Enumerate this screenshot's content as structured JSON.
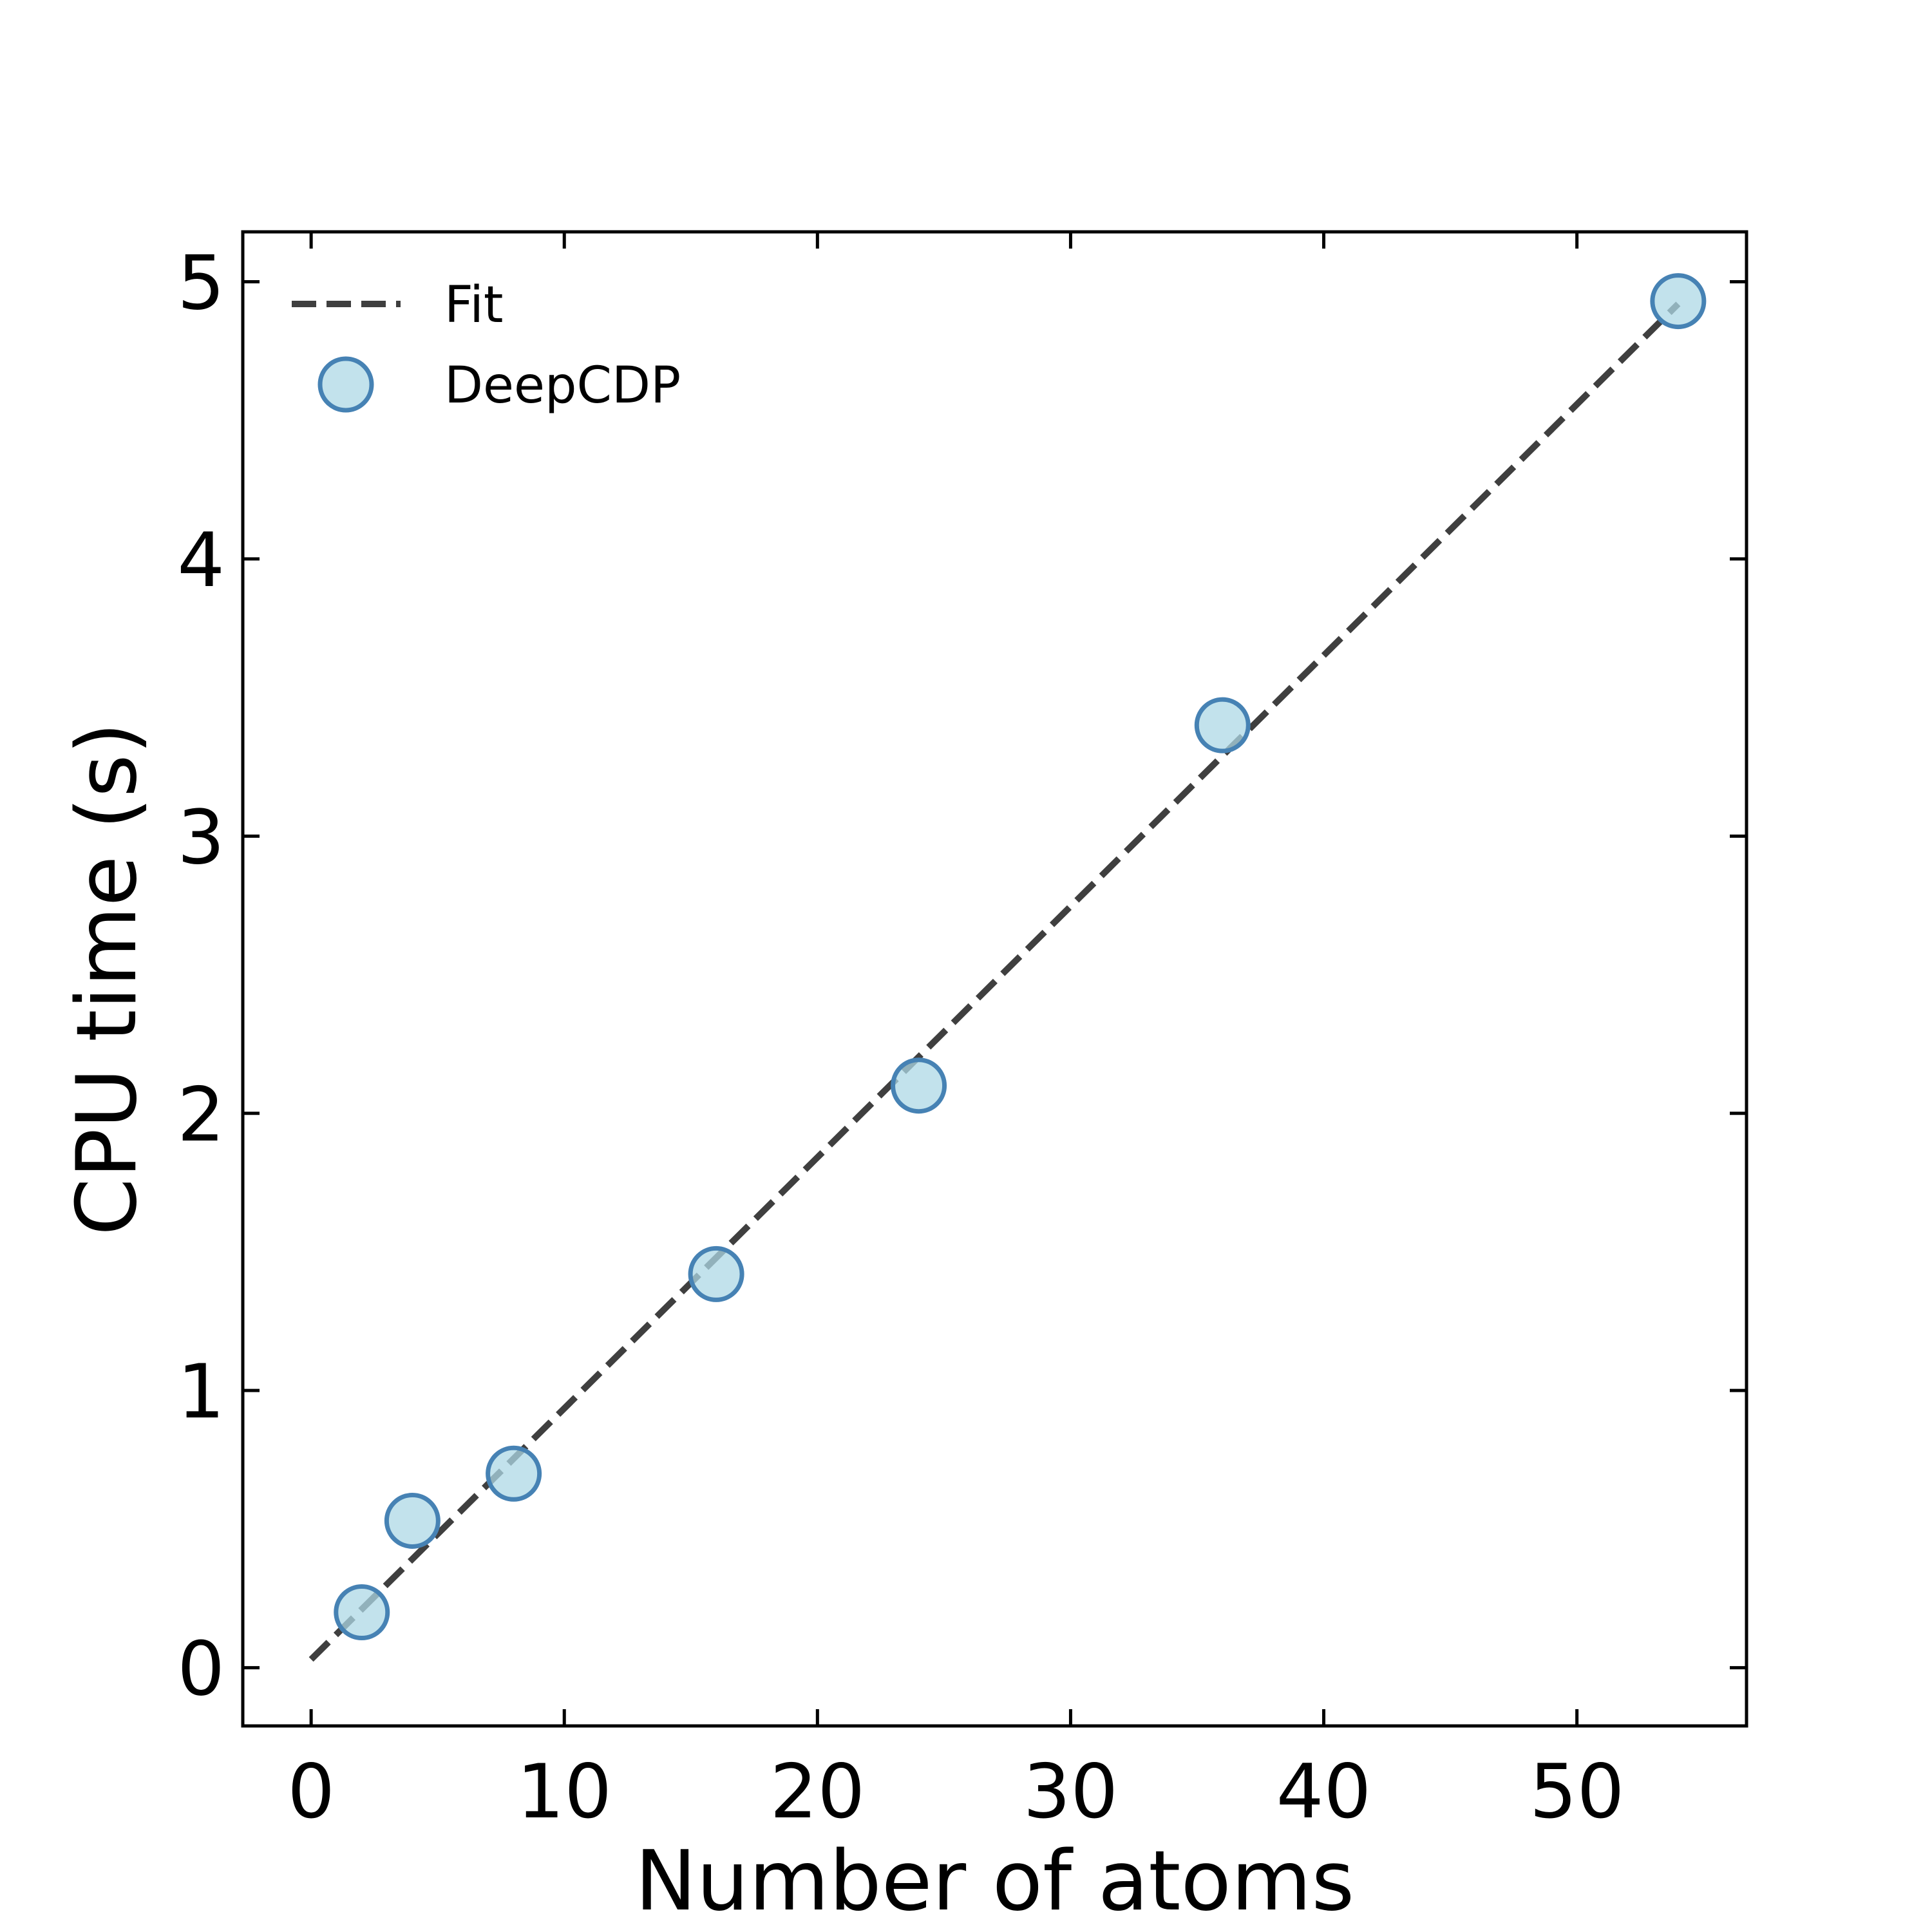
{
  "chart_data": {
    "type": "scatter",
    "title": "",
    "xlabel": "Number of atoms",
    "ylabel": "CPU time (s)",
    "xlim": [
      -2.7,
      56.7
    ],
    "ylim": [
      -0.21,
      5.18
    ],
    "xticks": [
      0,
      10,
      20,
      30,
      40,
      50
    ],
    "yticks": [
      0,
      1,
      2,
      3,
      4,
      5
    ],
    "xtick_labels": [
      "0",
      "10",
      "20",
      "30",
      "40",
      "50"
    ],
    "ytick_labels": [
      "0",
      "1",
      "2",
      "3",
      "4",
      "5"
    ],
    "grid": false,
    "legend_position": "top-left",
    "series": [
      {
        "name": "Fit",
        "kind": "line",
        "style": "dashed",
        "color": "#3f3f3f",
        "x": [
          0,
          54
        ],
        "y": [
          0.03,
          4.92
        ]
      },
      {
        "name": "DeepCDP",
        "kind": "scatter",
        "color": "#add8e6",
        "edge_color": "#4682b4",
        "x": [
          2,
          4,
          8,
          16,
          24,
          36,
          54
        ],
        "y": [
          0.2,
          0.53,
          0.7,
          1.42,
          2.1,
          3.4,
          4.93
        ]
      }
    ]
  }
}
